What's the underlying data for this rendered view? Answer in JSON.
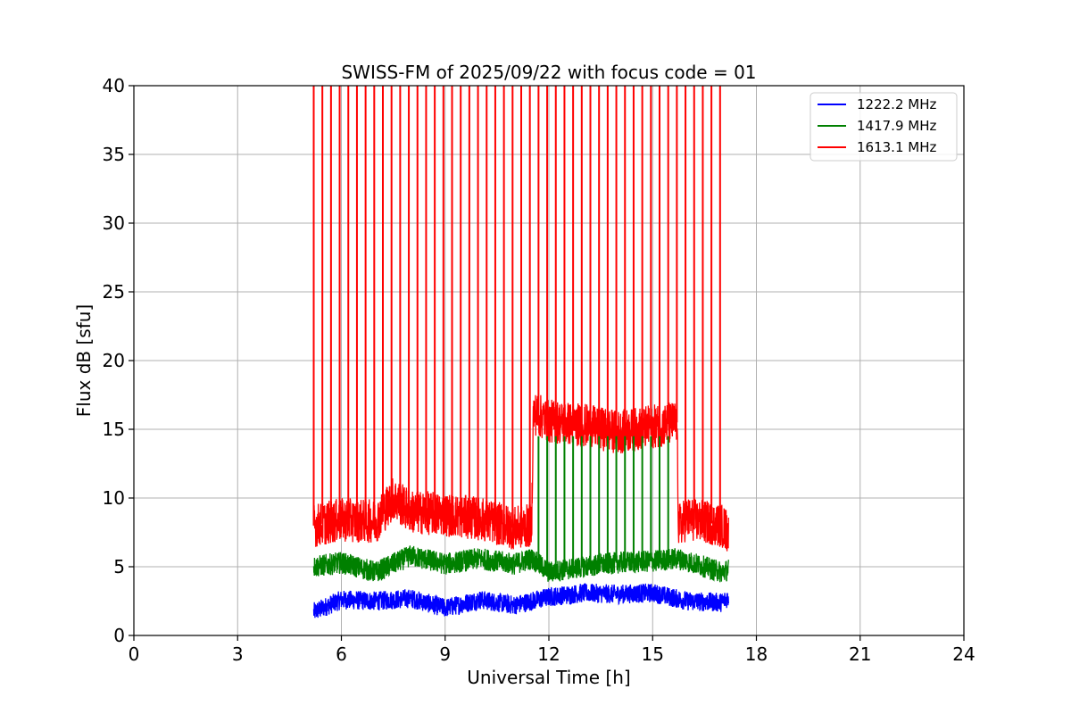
{
  "chart_data": {
    "type": "line",
    "title": "SWISS-FM of 2025/09/22 with focus code = 01",
    "xlabel": "Universal Time [h]",
    "ylabel": "Flux dB [sfu]",
    "xlim": [
      0,
      24
    ],
    "ylim": [
      0,
      40
    ],
    "xticks": [
      0,
      3,
      6,
      9,
      12,
      15,
      18,
      21,
      24
    ],
    "yticks": [
      0,
      5,
      10,
      15,
      20,
      25,
      30,
      35,
      40
    ],
    "grid": true,
    "legend_position": "top-right",
    "data_start_hour": 5.2,
    "data_end_hour": 17.2,
    "calibration_spike_hours": [
      5.2,
      5.45,
      5.7,
      5.95,
      6.2,
      6.45,
      6.7,
      6.95,
      7.2,
      7.45,
      7.7,
      7.95,
      8.2,
      8.45,
      8.7,
      8.95,
      9.2,
      9.45,
      9.7,
      9.95,
      10.2,
      10.45,
      10.7,
      10.95,
      11.2,
      11.45,
      11.7,
      11.95,
      12.2,
      12.45,
      12.7,
      12.95,
      13.2,
      13.45,
      13.7,
      13.95,
      14.2,
      14.45,
      14.7,
      14.95,
      15.2,
      15.45,
      15.7,
      15.95,
      16.2,
      16.45,
      16.7,
      16.95
    ],
    "series": [
      {
        "name": "1222.2 MHz",
        "color": "#0000ff",
        "x": [
          5.2,
          6,
          7,
          8,
          9,
          10,
          11,
          12,
          13,
          14,
          15,
          16,
          17,
          17.2
        ],
        "y": [
          1.7,
          2.6,
          2.5,
          2.7,
          2.0,
          2.6,
          2.2,
          2.8,
          3.1,
          3.0,
          3.1,
          2.5,
          2.4,
          2.8
        ],
        "noise": 0.7
      },
      {
        "name": "1417.9 MHz",
        "color": "#008000",
        "x": [
          5.2,
          6,
          7,
          8,
          9,
          10,
          11,
          11.5,
          12,
          13,
          14,
          15,
          15.7,
          16,
          17,
          17.2
        ],
        "y": [
          5.0,
          5.3,
          4.6,
          5.8,
          5.2,
          5.6,
          5.2,
          5.6,
          4.6,
          5.0,
          5.3,
          5.4,
          5.6,
          5.4,
          4.6,
          4.8
        ],
        "noise": 0.8
      },
      {
        "name": "1613.1 MHz",
        "color": "#ff0000",
        "x": [
          5.2,
          6,
          7,
          7.5,
          8,
          9,
          10,
          11,
          11.5,
          11.55,
          12,
          13,
          14,
          15,
          15.7,
          15.75,
          16,
          17,
          17.2
        ],
        "y": [
          8.0,
          8.4,
          8.3,
          10.0,
          9.0,
          8.8,
          8.5,
          7.8,
          8.0,
          16.2,
          15.6,
          15.3,
          14.8,
          15.2,
          15.5,
          8.0,
          8.5,
          8.0,
          7.5
        ],
        "noise": 1.6
      }
    ]
  }
}
